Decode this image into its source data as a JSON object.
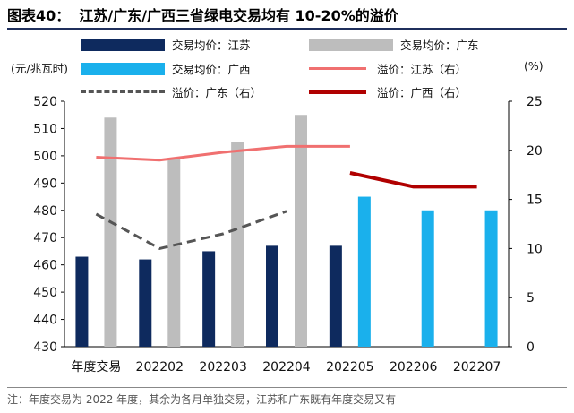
{
  "header": {
    "figure_no": "图表40：",
    "title": "江苏/广东/广西三省绿电交易均有 10-20%的溢价"
  },
  "units": {
    "left": "(元/兆瓦时)",
    "right": "(%)"
  },
  "note": "注：年度交易为 2022 年度，其余为各月单独交易，江苏和广东既有年度交易又有",
  "colors": {
    "jiangsu_bar": "#0e2a5e",
    "guangdong_bar": "#bdbdbd",
    "guangxi_bar": "#1ab0ec",
    "jiangsu_line": "#f07070",
    "guangdong_line": "#555555",
    "guangxi_line": "#b00000"
  },
  "chart_data": {
    "type": "bar+line",
    "categories": [
      "年度交易",
      "202202",
      "202203",
      "202204",
      "202205",
      "202206",
      "202207"
    ],
    "left_axis": {
      "min": 430,
      "max": 520,
      "step": 10,
      "ticks": [
        "430",
        "440",
        "450",
        "460",
        "470",
        "480",
        "490",
        "500",
        "510",
        "520"
      ]
    },
    "right_axis": {
      "min": 0,
      "max": 25,
      "step": 5,
      "ticks": [
        "0",
        "5",
        "10",
        "15",
        "20",
        "25"
      ]
    },
    "bar_series": [
      {
        "name": "交易均价：江苏",
        "key": "jiangsu_bar",
        "values": [
          463,
          462,
          465,
          467,
          467,
          null,
          null
        ]
      },
      {
        "name": "交易均价：广东",
        "key": "guangdong_bar",
        "values": [
          514,
          499,
          505,
          515,
          null,
          null,
          null
        ]
      },
      {
        "name": "交易均价：广西",
        "key": "guangxi_bar",
        "values": [
          null,
          null,
          null,
          null,
          485,
          480,
          480
        ]
      }
    ],
    "line_series": [
      {
        "name": "溢价：江苏（右）",
        "key": "jiangsu_line",
        "dash": false,
        "values": [
          19.3,
          19.0,
          19.8,
          20.4,
          20.4,
          null,
          null
        ]
      },
      {
        "name": "溢价：广东（右）",
        "key": "guangdong_line",
        "dash": true,
        "values": [
          13.5,
          10.0,
          11.5,
          13.8,
          null,
          null,
          null
        ]
      },
      {
        "name": "溢价：广西（右）",
        "key": "guangxi_line",
        "dash": false,
        "values": [
          null,
          null,
          null,
          null,
          17.7,
          16.3,
          16.3
        ]
      }
    ]
  }
}
